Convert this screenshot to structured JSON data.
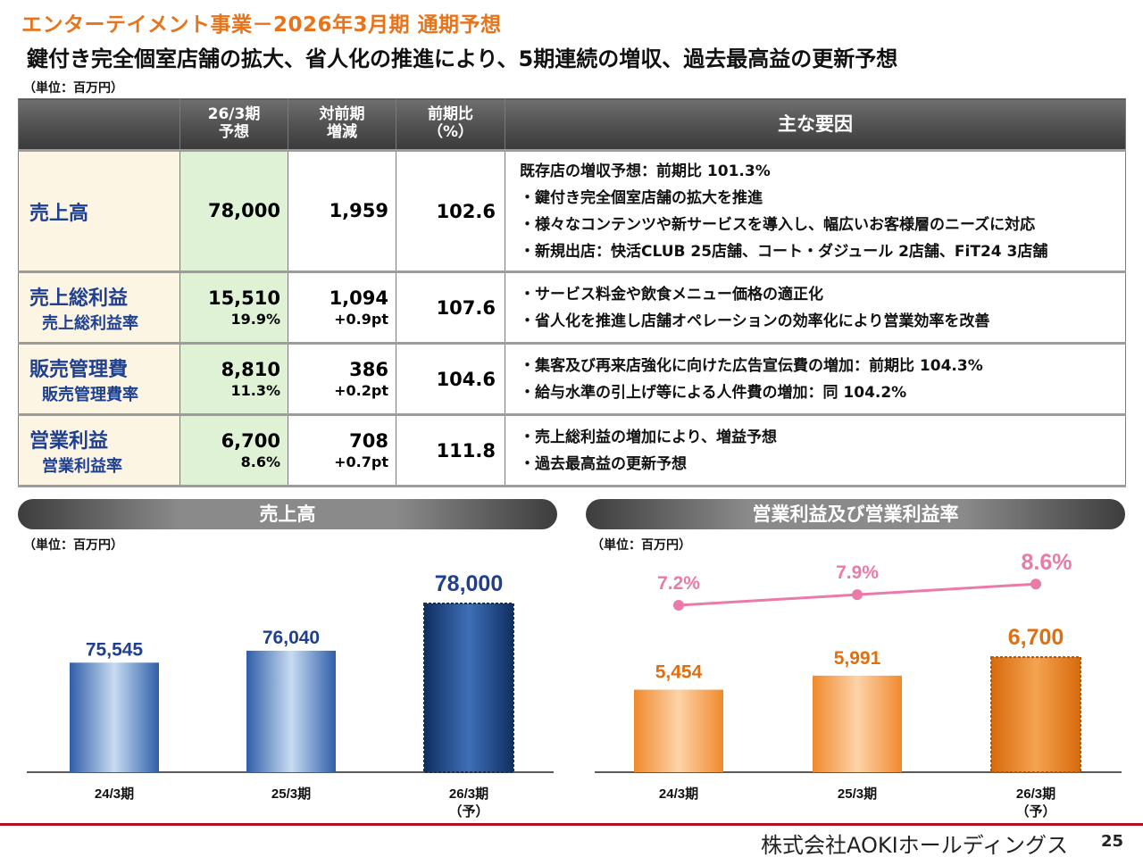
{
  "header": {
    "title": "エンターテイメント事業－2026年3月期 通期予想",
    "subtitle": "鍵付き完全個室店舗の拡大、省人化の推進により、5期連続の増収、過去最高益の更新予想",
    "unit": "（単位：百万円）"
  },
  "table": {
    "headers": {
      "forecast": [
        "26/3期",
        "予想"
      ],
      "yoy_change": [
        "対前期",
        "増減"
      ],
      "yoy_ratio": [
        "前期比",
        "（%）"
      ],
      "factors": "主な要因"
    },
    "rows": [
      {
        "label": "売上高",
        "sublabel": "",
        "forecast": "78,000",
        "forecast_sub": "",
        "change": "1,959",
        "change_sub": "",
        "ratio": "102.6",
        "factors": [
          "既存店の増収予想：前期比 101.3%",
          "・鍵付き完全個室店舗の拡大を推進",
          "・様々なコンテンツや新サービスを導入し、幅広いお客様層のニーズに対応",
          "・新規出店：快活CLUB 25店舗、コート・ダジュール 2店舗、FiT24 3店舗"
        ]
      },
      {
        "label": "売上総利益",
        "sublabel": "売上総利益率",
        "forecast": "15,510",
        "forecast_sub": "19.9%",
        "change": "1,094",
        "change_sub": "+0.9pt",
        "ratio": "107.6",
        "factors": [
          "・サービス料金や飲食メニュー価格の適正化",
          "・省人化を推進し店舗オペレーションの効率化により営業効率を改善"
        ]
      },
      {
        "label": "販売管理費",
        "sublabel": "販売管理費率",
        "forecast": "8,810",
        "forecast_sub": "11.3%",
        "change": "386",
        "change_sub": "+0.2pt",
        "ratio": "104.6",
        "factors": [
          "・集客及び再来店強化に向けた広告宣伝費の増加：前期比 104.3%",
          "・給与水準の引上げ等による人件費の増加：同 104.2%"
        ]
      },
      {
        "label": "営業利益",
        "sublabel": "営業利益率",
        "forecast": "6,700",
        "forecast_sub": "8.6%",
        "change": "708",
        "change_sub": "+0.7pt",
        "ratio": "111.8",
        "factors": [
          "・売上総利益の増加により、増益予想",
          "・過去最高益の更新予想"
        ]
      }
    ]
  },
  "sales_chart": {
    "title": "売上高",
    "unit": "（単位：百万円）",
    "categories": [
      "24/3期",
      "25/3期",
      "26/3期"
    ],
    "forecast_note": "（予）",
    "values": [
      75545,
      76040,
      78000
    ],
    "labels": [
      "75,545",
      "76,040",
      "78,000"
    ],
    "colors": {
      "bar": "#2f5ea8",
      "forecast_bar": "#173f7a",
      "label": "#1f3f8f"
    }
  },
  "profit_chart": {
    "title": "営業利益及び営業利益率",
    "unit": "（単位：百万円）",
    "categories": [
      "24/3期",
      "25/3期",
      "26/3期"
    ],
    "forecast_note": "（予）",
    "values": [
      5454,
      5991,
      6700
    ],
    "labels": [
      "5,454",
      "5,991",
      "6,700"
    ],
    "margin_values": [
      7.2,
      7.9,
      8.6
    ],
    "margin_labels": [
      "7.2%",
      "7.9%",
      "8.6%"
    ],
    "colors": {
      "bar": "#f08a2c",
      "forecast_bar": "#e0700f",
      "label": "#e0700f",
      "line": "#ea7aa8"
    }
  },
  "chart_data": [
    {
      "type": "bar",
      "title": "売上高",
      "categories": [
        "24/3期",
        "25/3期",
        "26/3期"
      ],
      "values": [
        75545,
        76040,
        78000
      ]
    },
    {
      "type": "bar",
      "title": "営業利益及び営業利益率",
      "categories": [
        "24/3期",
        "25/3期",
        "26/3期"
      ],
      "series": [
        {
          "values": [
            5454,
            5991,
            6700
          ]
        },
        {
          "values": [
            7.2,
            7.9,
            8.6
          ]
        }
      ]
    }
  ],
  "footer": {
    "company": "株式会社AOKIホールディングス",
    "page": "25"
  }
}
